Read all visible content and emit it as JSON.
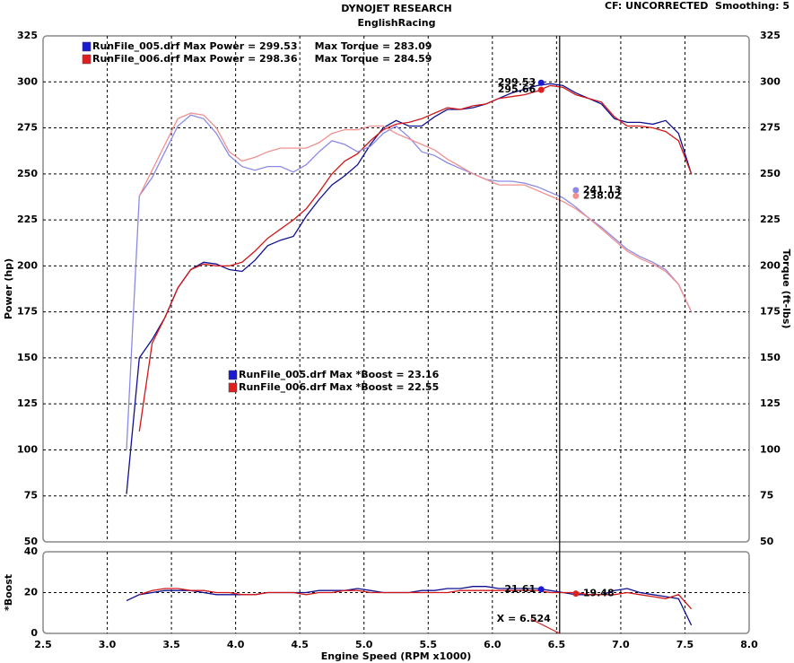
{
  "header": {
    "title": "DYNOJET RESEARCH",
    "subtitle": "EnglishRacing",
    "settings": "CF: UNCORRECTED  Smoothing: 5"
  },
  "chart_data": [
    {
      "type": "line",
      "ylabel": "Power (hp)",
      "y2label": "Torque (ft-lbs)",
      "x": [
        3.15,
        3.25,
        3.35,
        3.45,
        3.55,
        3.65,
        3.75,
        3.85,
        3.95,
        4.05,
        4.15,
        4.25,
        4.35,
        4.45,
        4.55,
        4.65,
        4.75,
        4.85,
        4.95,
        5.05,
        5.15,
        5.25,
        5.35,
        5.45,
        5.55,
        5.65,
        5.75,
        5.85,
        5.95,
        6.05,
        6.15,
        6.25,
        6.35,
        6.45,
        6.55,
        6.65,
        6.75,
        6.85,
        6.95,
        7.05,
        7.15,
        7.25,
        7.35,
        7.45,
        7.55
      ],
      "xlim": [
        2.5,
        8.0
      ],
      "xticks": [
        2.5,
        {
          "value": 3,
          "label": "3.0"
        },
        3.5,
        {
          "value": 4,
          "label": "4.0"
        },
        4.5,
        {
          "value": 5,
          "label": "5.0"
        },
        5.5,
        {
          "value": 6,
          "label": "6.0"
        },
        6.5,
        {
          "value": 7,
          "label": "7.0"
        },
        7.5,
        {
          "value": 8,
          "label": "8.0"
        }
      ],
      "show_xtick_labels": false,
      "ylim": [
        50,
        325
      ],
      "yticks": [
        50,
        75,
        100,
        125,
        150,
        175,
        200,
        225,
        250,
        275,
        300,
        325
      ],
      "y2lim": [
        50,
        325
      ],
      "y2ticks": [
        50,
        75,
        100,
        125,
        150,
        175,
        200,
        225,
        250,
        275,
        300,
        325
      ],
      "grid": true,
      "legend": [
        {
          "text": "RunFile_005.drf Max Power = 299.53     Max Torque = 283.09",
          "color": "#1a1ad0"
        },
        {
          "text": "RunFile_006.drf Max Power = 298.36     Max Torque = 284.59",
          "color": "#e02020"
        }
      ],
      "series": [
        {
          "color": "#10108f",
          "values": [
            76,
            150,
            160,
            172,
            188,
            198,
            202,
            201,
            198,
            197,
            203,
            211,
            214,
            216,
            227,
            236,
            244,
            249,
            255,
            266,
            275,
            279,
            276,
            276,
            281,
            285,
            285,
            286,
            288,
            291,
            294,
            296,
            298,
            299,
            298,
            294,
            291,
            288,
            280,
            278,
            278,
            277,
            279,
            272,
            250
          ]
        },
        {
          "color": "#d01818",
          "values": [
            null,
            110,
            158,
            172,
            188,
            198,
            201,
            200,
            200,
            202,
            208,
            215,
            220,
            225,
            231,
            240,
            250,
            257,
            261,
            268,
            274,
            277,
            278,
            280,
            283,
            286,
            285,
            287,
            288,
            291,
            292,
            293,
            295,
            298,
            297,
            293,
            291,
            289,
            281,
            276,
            276,
            275,
            273,
            268,
            250
          ]
        },
        {
          "color": "#8a8ae6",
          "axis": "y2",
          "values": [
            100,
            238,
            248,
            262,
            276,
            282,
            280,
            272,
            260,
            254,
            252,
            254,
            254,
            251,
            255,
            262,
            268,
            266,
            262,
            265,
            272,
            276,
            270,
            262,
            260,
            256,
            253,
            250,
            247,
            246,
            246,
            245,
            243,
            240,
            237,
            232,
            226,
            221,
            215,
            209,
            205,
            202,
            198,
            190,
            175
          ]
        },
        {
          "color": "#f09090",
          "axis": "y2",
          "values": [
            null,
            238,
            252,
            266,
            280,
            283,
            282,
            275,
            262,
            257,
            259,
            262,
            264,
            264,
            264,
            267,
            272,
            274,
            274,
            276,
            276,
            272,
            269,
            266,
            263,
            258,
            254,
            250,
            247,
            244,
            244,
            244,
            241,
            238,
            235,
            231,
            226,
            220,
            214,
            208,
            204,
            201,
            197,
            190,
            175
          ]
        }
      ],
      "annotations": [
        {
          "x": 6.38,
          "y": 299.53,
          "color": "#1a1ad0",
          "anchor": "end"
        },
        {
          "x": 6.38,
          "y": 295.66,
          "color": "#e02020",
          "anchor": "end"
        },
        {
          "x": 6.65,
          "y": 241.13,
          "color": "#8a8ae6",
          "anchor": "start"
        },
        {
          "x": 6.65,
          "y": 238.02,
          "color": "#f09090",
          "anchor": "start"
        }
      ]
    },
    {
      "type": "line",
      "ylabel": "*Boost",
      "xlabel": "Engine Speed (RPM x1000)",
      "x": [
        3.15,
        3.25,
        3.35,
        3.45,
        3.55,
        3.65,
        3.75,
        3.85,
        3.95,
        4.05,
        4.15,
        4.25,
        4.35,
        4.45,
        4.55,
        4.65,
        4.75,
        4.85,
        4.95,
        5.05,
        5.15,
        5.25,
        5.35,
        5.45,
        5.55,
        5.65,
        5.75,
        5.85,
        5.95,
        6.05,
        6.15,
        6.25,
        6.35,
        6.45,
        6.55,
        6.65,
        6.75,
        6.85,
        6.95,
        7.05,
        7.15,
        7.25,
        7.35,
        7.45,
        7.55
      ],
      "xlim": [
        2.5,
        8.0
      ],
      "xticks": [
        2.5,
        {
          "value": 3,
          "label": "3.0"
        },
        3.5,
        {
          "value": 4,
          "label": "4.0"
        },
        4.5,
        {
          "value": 5,
          "label": "5.0"
        },
        5.5,
        {
          "value": 6,
          "label": "6.0"
        },
        6.5,
        {
          "value": 7,
          "label": "7.0"
        },
        7.5,
        {
          "value": 8,
          "label": "8.0"
        }
      ],
      "show_xtick_labels": true,
      "ylim": [
        0,
        40
      ],
      "yticks": [
        0,
        20,
        40
      ],
      "grid": true,
      "legend": [
        {
          "text": "RunFile_005.drf Max *Boost = 23.16",
          "color": "#1a1ad0"
        },
        {
          "text": "RunFile_006.drf Max *Boost = 22.55",
          "color": "#e02020"
        }
      ],
      "series": [
        {
          "color": "#10108f",
          "values": [
            16,
            19,
            20,
            21,
            21,
            21,
            20,
            19,
            19,
            19,
            19,
            20,
            20,
            20,
            20,
            21,
            21,
            21,
            22,
            21,
            20,
            20,
            20,
            21,
            21,
            22,
            22,
            23,
            23,
            22,
            22,
            22,
            22,
            21,
            20,
            19,
            19,
            19,
            21,
            22,
            20,
            19,
            18,
            17,
            4
          ]
        },
        {
          "color": "#d01818",
          "values": [
            null,
            19,
            21,
            22,
            22,
            21,
            21,
            20,
            20,
            19,
            19,
            20,
            20,
            20,
            19,
            20,
            20,
            21,
            21,
            20,
            20,
            20,
            20,
            20,
            20,
            20,
            21,
            21,
            21,
            21,
            21,
            21,
            21,
            20,
            20,
            20,
            19,
            19,
            19,
            20,
            19,
            18,
            17,
            19,
            12
          ]
        }
      ],
      "annotations": [
        {
          "x": 6.38,
          "y": 21.61,
          "color": "#1a1ad0",
          "anchor": "end"
        },
        {
          "x": 6.65,
          "y": 19.48,
          "color": "#e02020",
          "anchor": "start"
        }
      ],
      "cursor": {
        "value": 6.524,
        "label": "X = 6.524"
      }
    }
  ]
}
